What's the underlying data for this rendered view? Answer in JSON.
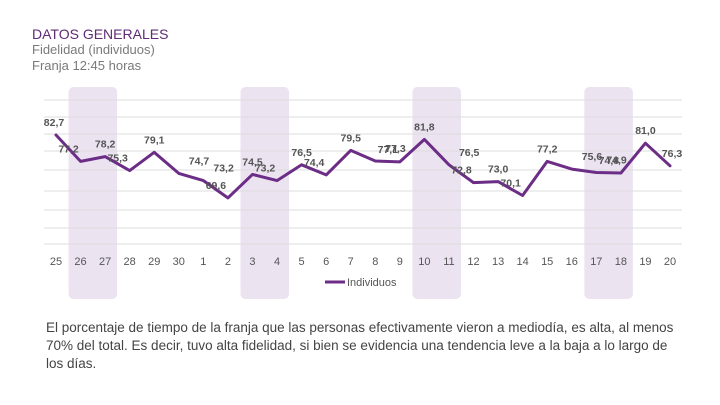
{
  "header": {
    "title": "DATOS GENERALES",
    "subtitle": "Fidelidad (individuos)",
    "time_slot": "Franja 12:45 horas"
  },
  "chart_data": {
    "type": "line",
    "title": "Fidelidad (individuos)",
    "xlabel": "",
    "ylabel": "",
    "ylim": [
      60,
      90
    ],
    "grid": true,
    "legend_position": "bottom-center",
    "categories": [
      "25",
      "26",
      "27",
      "28",
      "29",
      "30",
      "1",
      "2",
      "3",
      "4",
      "5",
      "6",
      "7",
      "8",
      "9",
      "10",
      "11",
      "12",
      "13",
      "14",
      "15",
      "16",
      "17",
      "18",
      "19",
      "20"
    ],
    "series": [
      {
        "name": "Individuos",
        "color": "#6b2d86",
        "values": [
          82.7,
          77.2,
          78.2,
          75.3,
          79.1,
          74.7,
          73.2,
          69.6,
          74.5,
          73.2,
          76.5,
          74.4,
          79.5,
          77.3,
          77.1,
          81.8,
          76.5,
          72.8,
          73.0,
          70.1,
          77.2,
          75.6,
          74.9,
          74.8,
          81.0,
          76.3
        ],
        "labels": [
          "82,7",
          "77,2",
          "78,2",
          "75,3",
          "79,1",
          "74,7",
          "73,2",
          "69,6",
          "74,5",
          "73,2",
          "76,5",
          "74,4",
          "79,5",
          "77,3",
          "77,1",
          "81,8",
          "76,5",
          "72,8",
          "73,0",
          "70,1",
          "77,2",
          "75,6",
          "74,9",
          "74,8",
          "81,0",
          "76,3"
        ]
      }
    ],
    "highlighted_categories": [
      [
        "26",
        "27"
      ],
      [
        "3",
        "4"
      ],
      [
        "10",
        "11"
      ],
      [
        "17",
        "18"
      ]
    ]
  },
  "colors": {
    "line": "#6b2d86",
    "highlight": "#ece3f1",
    "grid": "#dedede",
    "title": "#5e2b75",
    "text": "#444444"
  },
  "caption": "El porcentaje de tiempo de la franja que las personas efectivamente vieron a mediodía, es alta, al menos 70% del total. Es decir, tuvo alta fidelidad, si bien se evidencia una tendencia leve a la baja a lo largo de los días."
}
